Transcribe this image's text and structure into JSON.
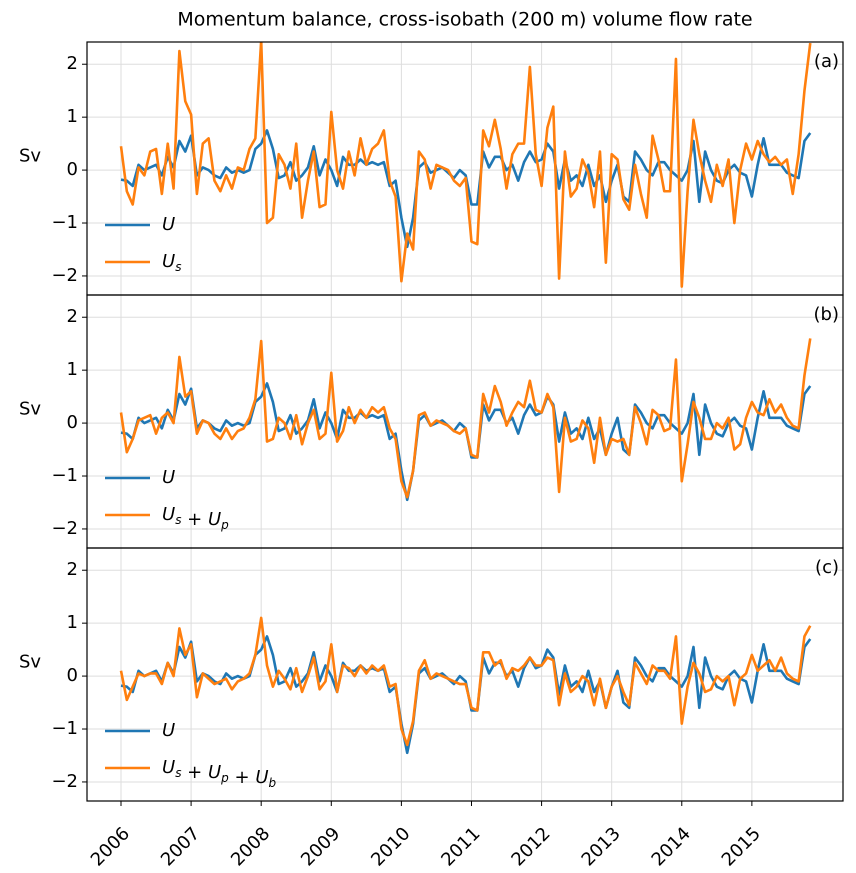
{
  "chart_data": {
    "type": "line",
    "title": "Momentum balance, cross-isobath (200 m) volume flow rate",
    "xlim": [
      2005.515,
      2016.3
    ],
    "xticks": [
      2006,
      2007,
      2008,
      2009,
      2010,
      2011,
      2012,
      2013,
      2014,
      2015
    ],
    "grid": true,
    "legend": "lower left",
    "x": [
      2006.0,
      2006.083,
      2006.167,
      2006.25,
      2006.333,
      2006.417,
      2006.5,
      2006.583,
      2006.667,
      2006.75,
      2006.833,
      2006.917,
      2007.0,
      2007.083,
      2007.167,
      2007.25,
      2007.333,
      2007.417,
      2007.5,
      2007.583,
      2007.667,
      2007.75,
      2007.833,
      2007.917,
      2008.0,
      2008.083,
      2008.167,
      2008.25,
      2008.333,
      2008.417,
      2008.5,
      2008.583,
      2008.667,
      2008.75,
      2008.833,
      2008.917,
      2009.0,
      2009.083,
      2009.167,
      2009.25,
      2009.333,
      2009.417,
      2009.5,
      2009.583,
      2009.667,
      2009.75,
      2009.833,
      2009.917,
      2010.0,
      2010.083,
      2010.167,
      2010.25,
      2010.333,
      2010.417,
      2010.5,
      2010.583,
      2010.667,
      2010.75,
      2010.833,
      2010.917,
      2011.0,
      2011.083,
      2011.167,
      2011.25,
      2011.333,
      2011.417,
      2011.5,
      2011.583,
      2011.667,
      2011.75,
      2011.833,
      2011.917,
      2012.0,
      2012.083,
      2012.167,
      2012.25,
      2012.333,
      2012.417,
      2012.5,
      2012.583,
      2012.667,
      2012.75,
      2012.833,
      2012.917,
      2013.0,
      2013.083,
      2013.167,
      2013.25,
      2013.333,
      2013.417,
      2013.5,
      2013.583,
      2013.667,
      2013.75,
      2013.833,
      2013.917,
      2014.0,
      2014.083,
      2014.167,
      2014.25,
      2014.333,
      2014.417,
      2014.5,
      2014.583,
      2014.667,
      2014.75,
      2014.833,
      2014.917,
      2015.0,
      2015.083,
      2015.167,
      2015.25,
      2015.333,
      2015.417,
      2015.5,
      2015.583,
      2015.667,
      2015.75,
      2015.833
    ],
    "panels": [
      {
        "label": "(a)",
        "ylabel": "Sv",
        "ylim": [
          -2.36,
          2.42
        ],
        "yticks": [
          {
            "value": -2,
            "label": "−2"
          },
          {
            "value": -1,
            "label": "−1"
          },
          0,
          1,
          2
        ],
        "series": [
          {
            "name": "U",
            "color": "#1f77b4",
            "values": [
              -0.18,
              -0.2,
              -0.3,
              0.1,
              0.0,
              0.05,
              0.1,
              -0.1,
              0.25,
              0.05,
              0.55,
              0.35,
              0.65,
              -0.1,
              0.05,
              0.0,
              -0.1,
              -0.15,
              0.05,
              -0.05,
              0.0,
              -0.05,
              0.0,
              0.4,
              0.5,
              0.75,
              0.4,
              -0.15,
              -0.1,
              0.15,
              -0.2,
              -0.1,
              0.05,
              0.45,
              -0.1,
              0.2,
              0.0,
              -0.3,
              0.25,
              0.1,
              0.1,
              0.2,
              0.1,
              0.15,
              0.1,
              0.15,
              -0.3,
              -0.2,
              -0.9,
              -1.45,
              -0.9,
              0.05,
              0.15,
              -0.05,
              0.0,
              0.05,
              -0.05,
              -0.15,
              0.0,
              -0.1,
              -0.65,
              -0.65,
              0.35,
              0.05,
              0.25,
              0.25,
              0.0,
              0.1,
              -0.2,
              0.15,
              0.35,
              0.15,
              0.2,
              0.5,
              0.35,
              -0.35,
              0.2,
              -0.2,
              -0.1,
              -0.3,
              0.1,
              -0.3,
              -0.1,
              -0.6,
              -0.2,
              0.1,
              -0.5,
              -0.6,
              0.35,
              0.2,
              0.0,
              -0.1,
              0.15,
              0.15,
              0.0,
              -0.1,
              -0.2,
              0.0,
              0.55,
              -0.6,
              0.35,
              0.0,
              -0.2,
              -0.25,
              0.0,
              0.1,
              -0.05,
              -0.1,
              -0.5,
              0.1,
              0.6,
              0.1,
              0.1,
              0.1,
              -0.05,
              -0.1,
              -0.15,
              0.55,
              0.7
            ]
          },
          {
            "name": "U_s",
            "color": "#ff7f0e",
            "values": [
              0.45,
              -0.4,
              -0.65,
              0.05,
              -0.1,
              0.35,
              0.4,
              -0.45,
              0.5,
              -0.35,
              2.25,
              1.3,
              1.05,
              -0.45,
              0.5,
              0.6,
              -0.2,
              -0.4,
              -0.1,
              -0.35,
              0.05,
              0.0,
              0.4,
              0.6,
              2.45,
              -1.0,
              -0.9,
              0.3,
              0.1,
              -0.35,
              0.5,
              -0.9,
              -0.2,
              0.35,
              -0.7,
              -0.65,
              1.1,
              0.0,
              -0.35,
              0.35,
              -0.1,
              0.6,
              0.1,
              0.4,
              0.5,
              0.75,
              -0.2,
              -0.5,
              -2.1,
              -1.2,
              -1.5,
              0.35,
              0.2,
              -0.35,
              0.1,
              0.05,
              0.0,
              -0.2,
              -0.3,
              -0.15,
              -1.35,
              -1.4,
              0.75,
              0.45,
              0.95,
              0.4,
              -0.35,
              0.3,
              0.5,
              0.5,
              1.95,
              0.3,
              -0.3,
              0.8,
              1.2,
              -2.05,
              0.35,
              -0.5,
              -0.35,
              0.2,
              -0.05,
              -0.7,
              0.35,
              -1.75,
              0.3,
              0.2,
              -0.55,
              -0.75,
              0.1,
              -0.45,
              -0.9,
              0.65,
              0.2,
              -0.4,
              -0.4,
              2.1,
              -2.2,
              -0.4,
              0.95,
              0.3,
              -0.2,
              -0.6,
              0.1,
              -0.3,
              0.2,
              -1.0,
              0.0,
              0.5,
              0.2,
              0.55,
              0.3,
              0.15,
              0.25,
              0.1,
              0.2,
              -0.45,
              0.3,
              1.5,
              2.4
            ]
          }
        ]
      },
      {
        "label": "(b)",
        "ylabel": "Sv",
        "ylim": [
          -2.36,
          2.42
        ],
        "yticks": [
          {
            "value": -2,
            "label": "−2"
          },
          {
            "value": -1,
            "label": "−1"
          },
          0,
          1,
          2
        ],
        "series": [
          {
            "name": "U",
            "color": "#1f77b4",
            "values": [
              -0.18,
              -0.2,
              -0.3,
              0.1,
              0.0,
              0.05,
              0.1,
              -0.1,
              0.25,
              0.05,
              0.55,
              0.35,
              0.65,
              -0.1,
              0.05,
              0.0,
              -0.1,
              -0.15,
              0.05,
              -0.05,
              0.0,
              -0.05,
              0.0,
              0.4,
              0.5,
              0.75,
              0.4,
              -0.15,
              -0.1,
              0.15,
              -0.2,
              -0.1,
              0.05,
              0.45,
              -0.1,
              0.2,
              0.0,
              -0.3,
              0.25,
              0.1,
              0.1,
              0.2,
              0.1,
              0.15,
              0.1,
              0.15,
              -0.3,
              -0.2,
              -0.9,
              -1.45,
              -0.9,
              0.05,
              0.15,
              -0.05,
              0.0,
              0.05,
              -0.05,
              -0.15,
              0.0,
              -0.1,
              -0.65,
              -0.65,
              0.35,
              0.05,
              0.25,
              0.25,
              0.0,
              0.1,
              -0.2,
              0.15,
              0.35,
              0.15,
              0.2,
              0.5,
              0.35,
              -0.35,
              0.2,
              -0.2,
              -0.1,
              -0.3,
              0.1,
              -0.3,
              -0.1,
              -0.6,
              -0.2,
              0.1,
              -0.5,
              -0.6,
              0.35,
              0.2,
              0.0,
              -0.1,
              0.15,
              0.15,
              0.0,
              -0.1,
              -0.2,
              0.0,
              0.55,
              -0.6,
              0.35,
              0.0,
              -0.2,
              -0.25,
              0.0,
              0.1,
              -0.05,
              -0.1,
              -0.5,
              0.1,
              0.6,
              0.1,
              0.1,
              0.1,
              -0.05,
              -0.1,
              -0.15,
              0.55,
              0.7
            ]
          },
          {
            "name": "U_s + U_p",
            "color": "#ff7f0e",
            "values": [
              0.2,
              -0.55,
              -0.3,
              0.05,
              0.1,
              0.15,
              -0.2,
              0.1,
              0.2,
              0.0,
              1.25,
              0.5,
              0.6,
              -0.2,
              0.05,
              0.0,
              -0.2,
              -0.3,
              -0.1,
              -0.3,
              -0.15,
              -0.1,
              0.1,
              0.45,
              1.55,
              -0.35,
              -0.3,
              0.1,
              0.0,
              -0.3,
              0.15,
              -0.4,
              0.0,
              0.25,
              -0.3,
              -0.2,
              0.95,
              -0.35,
              -0.15,
              0.3,
              0.0,
              0.25,
              0.1,
              0.3,
              0.2,
              0.3,
              -0.1,
              -0.3,
              -1.1,
              -1.4,
              -0.9,
              0.15,
              0.2,
              -0.05,
              0.05,
              0.0,
              -0.05,
              -0.15,
              -0.2,
              -0.1,
              -0.6,
              -0.65,
              0.55,
              0.2,
              0.7,
              0.4,
              -0.05,
              0.2,
              0.4,
              0.3,
              0.8,
              0.25,
              0.2,
              0.55,
              0.3,
              -1.3,
              0.1,
              -0.35,
              -0.3,
              0.05,
              -0.1,
              -0.75,
              0.1,
              -0.6,
              -0.3,
              -0.35,
              -0.3,
              -0.6,
              0.3,
              0.0,
              -0.4,
              0.25,
              0.15,
              -0.15,
              -0.1,
              1.2,
              -1.1,
              -0.4,
              0.4,
              0.1,
              -0.3,
              -0.3,
              0.0,
              -0.1,
              0.1,
              -0.5,
              -0.4,
              0.1,
              0.4,
              0.2,
              0.15,
              0.45,
              0.2,
              0.35,
              0.1,
              -0.05,
              -0.1,
              0.9,
              1.6
            ]
          }
        ]
      },
      {
        "label": "(c)",
        "ylabel": "Sv",
        "ylim": [
          -2.36,
          2.42
        ],
        "yticks": [
          {
            "value": -2,
            "label": "−2"
          },
          {
            "value": -1,
            "label": "−1"
          },
          0,
          1,
          2
        ],
        "series": [
          {
            "name": "U",
            "color": "#1f77b4",
            "values": [
              -0.18,
              -0.2,
              -0.3,
              0.1,
              0.0,
              0.05,
              0.1,
              -0.1,
              0.25,
              0.05,
              0.55,
              0.35,
              0.65,
              -0.1,
              0.05,
              0.0,
              -0.1,
              -0.15,
              0.05,
              -0.05,
              0.0,
              -0.05,
              0.0,
              0.4,
              0.5,
              0.75,
              0.4,
              -0.15,
              -0.1,
              0.15,
              -0.2,
              -0.1,
              0.05,
              0.45,
              -0.1,
              0.2,
              0.0,
              -0.3,
              0.25,
              0.1,
              0.1,
              0.2,
              0.1,
              0.15,
              0.1,
              0.15,
              -0.3,
              -0.2,
              -0.9,
              -1.45,
              -0.9,
              0.05,
              0.15,
              -0.05,
              0.0,
              0.05,
              -0.05,
              -0.15,
              0.0,
              -0.1,
              -0.65,
              -0.65,
              0.35,
              0.05,
              0.25,
              0.25,
              0.0,
              0.1,
              -0.2,
              0.15,
              0.35,
              0.15,
              0.2,
              0.5,
              0.35,
              -0.35,
              0.2,
              -0.2,
              -0.1,
              -0.3,
              0.1,
              -0.3,
              -0.1,
              -0.6,
              -0.2,
              0.1,
              -0.5,
              -0.6,
              0.35,
              0.2,
              0.0,
              -0.1,
              0.15,
              0.15,
              0.0,
              -0.1,
              -0.2,
              0.0,
              0.55,
              -0.6,
              0.35,
              0.0,
              -0.2,
              -0.25,
              0.0,
              0.1,
              -0.05,
              -0.1,
              -0.5,
              0.1,
              0.6,
              0.1,
              0.1,
              0.1,
              -0.05,
              -0.1,
              -0.15,
              0.55,
              0.7
            ]
          },
          {
            "name": "U_s + U_p + U_b",
            "color": "#ff7f0e",
            "values": [
              0.1,
              -0.45,
              -0.2,
              0.05,
              0.0,
              0.05,
              0.05,
              -0.15,
              0.25,
              0.0,
              0.9,
              0.4,
              0.6,
              -0.4,
              0.05,
              -0.05,
              -0.15,
              -0.1,
              -0.05,
              -0.25,
              -0.1,
              -0.05,
              0.05,
              0.4,
              1.1,
              0.2,
              -0.2,
              0.1,
              -0.05,
              -0.25,
              0.15,
              -0.3,
              0.0,
              0.35,
              -0.25,
              -0.1,
              0.6,
              -0.3,
              0.2,
              0.15,
              0.0,
              0.2,
              0.05,
              0.2,
              0.1,
              0.2,
              -0.2,
              -0.15,
              -1.0,
              -1.3,
              -0.85,
              0.1,
              0.3,
              -0.05,
              0.05,
              0.0,
              -0.05,
              -0.1,
              -0.15,
              -0.15,
              -0.6,
              -0.65,
              0.45,
              0.45,
              0.2,
              0.3,
              -0.05,
              0.15,
              0.1,
              0.2,
              0.35,
              0.2,
              0.2,
              0.35,
              0.3,
              -0.55,
              0.05,
              -0.3,
              -0.2,
              0.0,
              -0.1,
              -0.55,
              -0.05,
              -0.6,
              -0.2,
              0.0,
              -0.3,
              -0.55,
              0.25,
              0.05,
              -0.15,
              0.2,
              0.1,
              0.1,
              -0.05,
              0.75,
              -0.9,
              -0.2,
              0.25,
              0.05,
              -0.3,
              -0.25,
              0.0,
              -0.1,
              0.0,
              -0.55,
              -0.05,
              0.05,
              0.4,
              0.1,
              0.2,
              0.3,
              0.1,
              0.35,
              0.05,
              -0.05,
              -0.1,
              0.75,
              0.95
            ]
          }
        ]
      }
    ]
  }
}
